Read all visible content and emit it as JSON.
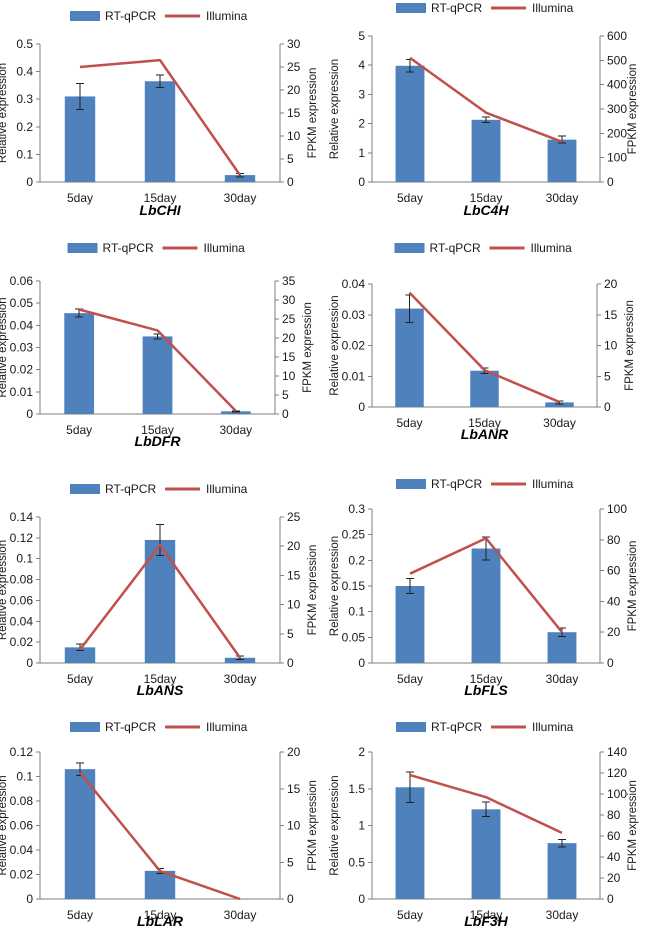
{
  "legend": {
    "bar_label": "RT-qPCR",
    "line_label": "Illumina",
    "bar_color": "#4f81bd",
    "line_color": "#c0504d"
  },
  "axis_titles": {
    "left": "Relative expression",
    "right": "FPKM expression"
  },
  "chart_data": [
    {
      "type": "bar",
      "title": "LbCHI",
      "categories": [
        "5day",
        "15day",
        "30day"
      ],
      "ylabel": "Relative expression",
      "y2label": "FPKM expression",
      "ylim": [
        0,
        0.5
      ],
      "yticks": [
        "0",
        "0.1",
        "0.2",
        "0.3",
        "0.4",
        "0.5"
      ],
      "y2lim": [
        0,
        30
      ],
      "y2ticks": [
        "0",
        "5",
        "10",
        "15",
        "20",
        "25",
        "30"
      ],
      "series": [
        {
          "name": "RT-qPCR",
          "kind": "bar",
          "axis": "left",
          "values": [
            0.31,
            0.365,
            0.025
          ],
          "errors": [
            0.047,
            0.022,
            0.006
          ]
        },
        {
          "name": "Illumina",
          "kind": "line",
          "axis": "right",
          "values": [
            25,
            26.5,
            1.5
          ]
        }
      ]
    },
    {
      "type": "bar",
      "title": "LbC4H",
      "categories": [
        "5day",
        "15day",
        "30day"
      ],
      "ylabel": "Relative expression",
      "y2label": "FPKM expression",
      "ylim": [
        0,
        5
      ],
      "yticks": [
        "0",
        "1",
        "2",
        "3",
        "4",
        "5"
      ],
      "y2lim": [
        0,
        600
      ],
      "y2ticks": [
        "0",
        "100",
        "200",
        "300",
        "400",
        "500",
        "600"
      ],
      "series": [
        {
          "name": "RT-qPCR",
          "kind": "bar",
          "axis": "left",
          "values": [
            3.98,
            2.13,
            1.45
          ],
          "errors": [
            0.22,
            0.09,
            0.12
          ]
        },
        {
          "name": "Illumina",
          "kind": "line",
          "axis": "right",
          "values": [
            510,
            285,
            165
          ]
        }
      ]
    },
    {
      "type": "bar",
      "title": "LbDFR",
      "categories": [
        "5day",
        "15day",
        "30day"
      ],
      "ylabel": "Relative expression",
      "y2label": "FPKM expression",
      "ylim": [
        0,
        0.06
      ],
      "yticks": [
        "0",
        "0.01",
        "0.02",
        "0.03",
        "0.04",
        "0.05",
        "0.06"
      ],
      "y2lim": [
        0,
        35
      ],
      "y2ticks": [
        "0",
        "5",
        "10",
        "15",
        "20",
        "25",
        "30",
        "35"
      ],
      "series": [
        {
          "name": "RT-qPCR",
          "kind": "bar",
          "axis": "left",
          "values": [
            0.0455,
            0.035,
            0.0012
          ],
          "errors": [
            0.0018,
            0.0012,
            0.0002
          ]
        },
        {
          "name": "Illumina",
          "kind": "line",
          "axis": "right",
          "values": [
            27.5,
            22,
            0.8
          ]
        }
      ]
    },
    {
      "type": "bar",
      "title": "LbANR",
      "categories": [
        "5day",
        "15day",
        "30day"
      ],
      "ylabel": "Relative expression",
      "y2label": "FPKM expression",
      "ylim": [
        0,
        0.04
      ],
      "yticks": [
        "0",
        "0.01",
        "0.02",
        "0.03",
        "0.04"
      ],
      "y2lim": [
        0,
        20
      ],
      "y2ticks": [
        "0",
        "5",
        "10",
        "15",
        "20"
      ],
      "series": [
        {
          "name": "RT-qPCR",
          "kind": "bar",
          "axis": "left",
          "values": [
            0.032,
            0.0118,
            0.0015
          ],
          "errors": [
            0.0045,
            0.0009,
            0.0005
          ]
        },
        {
          "name": "Illumina",
          "kind": "line",
          "axis": "right",
          "values": [
            18.6,
            6,
            0.8
          ]
        }
      ]
    },
    {
      "type": "bar",
      "title": "LbANS",
      "categories": [
        "5day",
        "15day",
        "30day"
      ],
      "ylabel": "Relative expression",
      "y2label": "FPKM expression",
      "ylim": [
        0,
        0.14
      ],
      "yticks": [
        "0",
        "0.02",
        "0.04",
        "0.06",
        "0.08",
        "0.1",
        "0.12",
        "0.14"
      ],
      "y2lim": [
        0,
        25
      ],
      "y2ticks": [
        "0",
        "5",
        "10",
        "15",
        "20",
        "25"
      ],
      "series": [
        {
          "name": "RT-qPCR",
          "kind": "bar",
          "axis": "left",
          "values": [
            0.015,
            0.118,
            0.005
          ],
          "errors": [
            0.003,
            0.015,
            0.0015
          ]
        },
        {
          "name": "Illumina",
          "kind": "line",
          "axis": "right",
          "values": [
            2.3,
            20.2,
            0.9
          ]
        }
      ]
    },
    {
      "type": "bar",
      "title": "LbFLS",
      "categories": [
        "5day",
        "15day",
        "30day"
      ],
      "ylabel": "Relative expression",
      "y2label": "FPKM expression",
      "ylim": [
        0,
        0.3
      ],
      "yticks": [
        "0",
        "0.05",
        "0.1",
        "0.15",
        "0.2",
        "0.25",
        "0.3"
      ],
      "y2lim": [
        0,
        100
      ],
      "y2ticks": [
        "0",
        "20",
        "40",
        "60",
        "80",
        "100"
      ],
      "series": [
        {
          "name": "RT-qPCR",
          "kind": "bar",
          "axis": "left",
          "values": [
            0.15,
            0.223,
            0.06
          ],
          "errors": [
            0.015,
            0.022,
            0.008
          ]
        },
        {
          "name": "Illumina",
          "kind": "line",
          "axis": "right",
          "values": [
            58,
            81,
            20
          ]
        }
      ]
    },
    {
      "type": "bar",
      "title": "LbLAR",
      "categories": [
        "5day",
        "15day",
        "30day"
      ],
      "ylabel": "Relative expression",
      "y2label": "FPKM expression",
      "ylim": [
        0,
        0.12
      ],
      "yticks": [
        "0",
        "0.02",
        "0.04",
        "0.06",
        "0.08",
        "0.1",
        "0.12"
      ],
      "y2lim": [
        0,
        20
      ],
      "y2ticks": [
        "0",
        "5",
        "10",
        "15",
        "20"
      ],
      "series": [
        {
          "name": "RT-qPCR",
          "kind": "bar",
          "axis": "left",
          "values": [
            0.106,
            0.023,
            0
          ],
          "errors": [
            0.005,
            0.002,
            0
          ]
        },
        {
          "name": "Illumina",
          "kind": "line",
          "axis": "right",
          "values": [
            17.2,
            3.8,
            0
          ]
        }
      ]
    },
    {
      "type": "bar",
      "title": "LbF3H",
      "categories": [
        "5day",
        "15day",
        "30day"
      ],
      "ylabel": "Relative expression",
      "y2label": "FPKM expression",
      "ylim": [
        0,
        2
      ],
      "yticks": [
        "0",
        "0.5",
        "1",
        "1.5",
        "2"
      ],
      "y2lim": [
        0,
        140
      ],
      "y2ticks": [
        "0",
        "20",
        "40",
        "60",
        "80",
        "100",
        "120",
        "140"
      ],
      "series": [
        {
          "name": "RT-qPCR",
          "kind": "bar",
          "axis": "left",
          "values": [
            1.52,
            1.22,
            0.76
          ],
          "errors": [
            0.21,
            0.1,
            0.05
          ]
        },
        {
          "name": "Illumina",
          "kind": "line",
          "axis": "right",
          "values": [
            118,
            97,
            63
          ]
        }
      ]
    }
  ]
}
